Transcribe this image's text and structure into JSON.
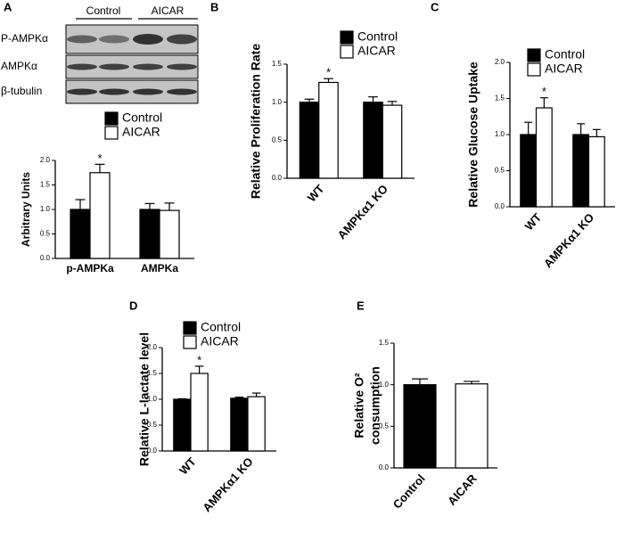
{
  "chart_data": [
    {
      "type": "bar",
      "ylabel": "Arbitrary Units",
      "categories": [
        "p-AMPKa",
        "AMPKa"
      ],
      "series": [
        {
          "name": "Control",
          "color": "#000000",
          "values": [
            1.0,
            1.0
          ],
          "errors": [
            0.2,
            0.12
          ]
        },
        {
          "name": "AICAR",
          "color": "#ffffff",
          "values": [
            1.75,
            0.98
          ],
          "errors": [
            0.17,
            0.15
          ],
          "markers": [
            "*",
            null
          ]
        }
      ],
      "ylim": [
        0,
        2
      ],
      "yticks": [
        {
          "value": 0,
          "label": "0.0"
        },
        0.5,
        {
          "value": 1,
          "label": "1.0"
        },
        1.5,
        {
          "value": 2,
          "label": "2.0"
        }
      ]
    },
    {
      "type": "bar",
      "panel": "B",
      "ylabel": "Relative Proliferation Rate",
      "categories": [
        "WT",
        "AMPKα1 KO"
      ],
      "series": [
        {
          "name": "Control",
          "color": "#000000",
          "values": [
            1.0,
            1.0
          ],
          "errors": [
            0.04,
            0.07
          ]
        },
        {
          "name": "AICAR",
          "color": "#ffffff",
          "values": [
            1.26,
            0.96
          ],
          "errors": [
            0.05,
            0.05
          ],
          "markers": [
            "*",
            null
          ]
        }
      ],
      "ylim": [
        0,
        1.5
      ],
      "yticks": [
        {
          "value": 0,
          "label": "0.0"
        },
        0.5,
        {
          "value": 1,
          "label": "1.0"
        },
        1.5
      ]
    },
    {
      "type": "bar",
      "panel": "C",
      "ylabel": "Relative Glucose Uptake",
      "categories": [
        "WT",
        "AMPKα1 KO"
      ],
      "series": [
        {
          "name": "Control",
          "color": "#000000",
          "values": [
            1.0,
            1.0
          ],
          "errors": [
            0.17,
            0.15
          ]
        },
        {
          "name": "AICAR",
          "color": "#ffffff",
          "values": [
            1.37,
            0.97
          ],
          "errors": [
            0.14,
            0.1
          ],
          "markers": [
            "*",
            null
          ]
        }
      ],
      "ylim": [
        0,
        2
      ],
      "yticks": [
        {
          "value": 0,
          "label": "0.0"
        },
        0.5,
        {
          "value": 1,
          "label": "1.0"
        },
        1.5,
        {
          "value": 2,
          "label": "2.0"
        }
      ]
    },
    {
      "type": "bar",
      "panel": "D",
      "ylabel": "Relative L-lactate level",
      "categories": [
        "WT",
        "AMPKα1 KO"
      ],
      "series": [
        {
          "name": "Control",
          "color": "#000000",
          "values": [
            1.0,
            1.02
          ],
          "errors": [
            0.01,
            0.02
          ]
        },
        {
          "name": "AICAR",
          "color": "#ffffff",
          "values": [
            1.5,
            1.05
          ],
          "errors": [
            0.14,
            0.07
          ],
          "markers": [
            "*",
            null
          ]
        }
      ],
      "ylim": [
        0,
        2
      ],
      "yticks": [
        {
          "value": 0,
          "label": "0.0"
        },
        0.5,
        {
          "value": 1,
          "label": "1.0"
        },
        1.5,
        {
          "value": 2,
          "label": "2.0"
        }
      ]
    },
    {
      "type": "bar",
      "panel": "E",
      "ylabel": [
        "Relative O²",
        "consumption"
      ],
      "categories": [
        "Control",
        "AICAR"
      ],
      "values": [
        1.0,
        1.01
      ],
      "errors": [
        0.07,
        0.03
      ],
      "colors": [
        "#000000",
        "#ffffff"
      ],
      "ylim": [
        0,
        1.5
      ],
      "yticks": [
        {
          "value": 0,
          "label": "0.0"
        },
        0.5,
        {
          "value": 1,
          "label": "1.0"
        },
        1.5
      ]
    }
  ],
  "blot": {
    "panel": "A",
    "columns": [
      "Control",
      "AICAR"
    ],
    "rows": [
      "P-AMPKα",
      "AMPKα",
      "β-tubulin"
    ]
  }
}
